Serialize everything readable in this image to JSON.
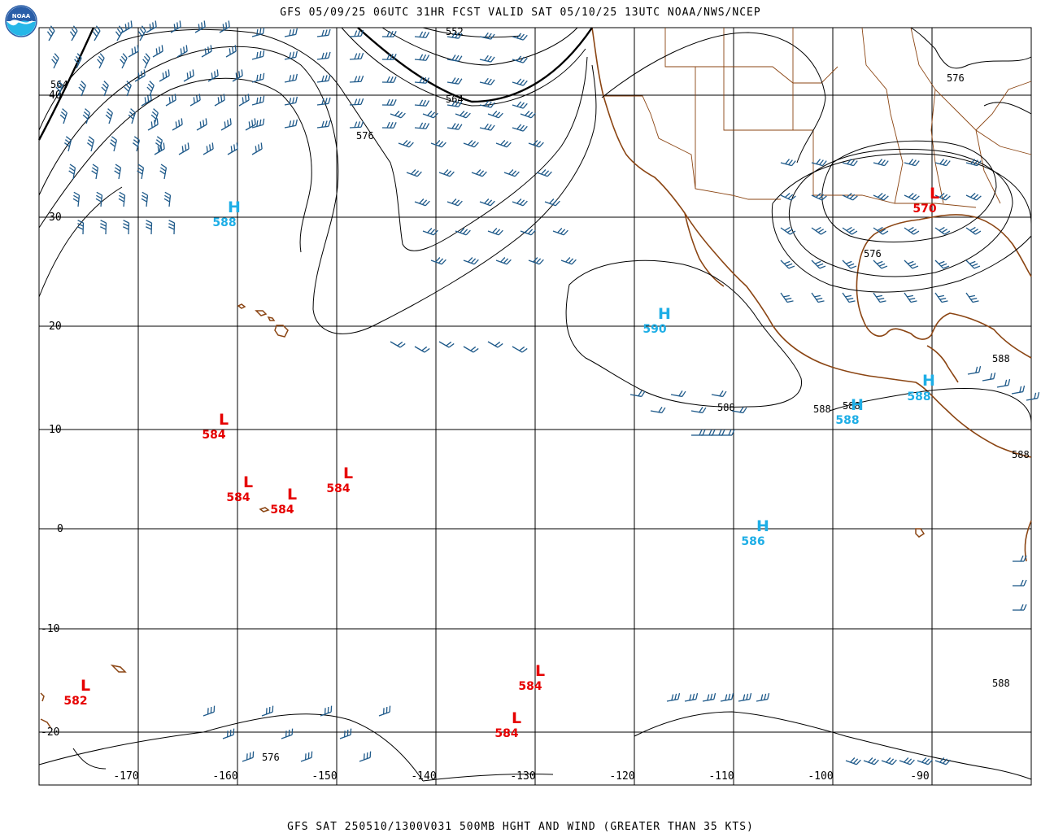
{
  "header": {
    "title": "GFS 05/09/25 06UTC 31HR FCST VALID SAT 05/10/25 13UTC NOAA/NWS/NCEP"
  },
  "footer": {
    "caption": "GFS SAT 250510/1300V031 500MB HGHT AND WIND (GREATER THAN 35 KTS)"
  },
  "logo": {
    "text": "NOAA",
    "icon": "noaa-logo-icon"
  },
  "colors": {
    "high": "#1eaee6",
    "low": "#e60000",
    "wind": "#1f5a8a",
    "coast": "#8b4513",
    "grid": "#000000"
  },
  "map": {
    "lat_labels": [
      "40",
      "30",
      "20",
      "10",
      "0",
      "-10",
      "-20"
    ],
    "lon_labels": [
      "-170",
      "-160",
      "-150",
      "-140",
      "-130",
      "-120",
      "-110",
      "-100",
      "-90"
    ],
    "contour_labels": [
      "552",
      "564",
      "564",
      "576",
      "576",
      "576",
      "576",
      "588",
      "588",
      "588",
      "588",
      "588",
      "588"
    ],
    "highs": [
      {
        "letter": "H",
        "value": "588"
      },
      {
        "letter": "H",
        "value": "590"
      },
      {
        "letter": "H",
        "value": "586"
      },
      {
        "letter": "H",
        "value": "588"
      },
      {
        "letter": "H",
        "value": "588"
      }
    ],
    "lows": [
      {
        "letter": "L",
        "value": "584"
      },
      {
        "letter": "L",
        "value": "584"
      },
      {
        "letter": "L",
        "value": "584"
      },
      {
        "letter": "L",
        "value": "584"
      },
      {
        "letter": "L",
        "value": "582"
      },
      {
        "letter": "L",
        "value": "584"
      },
      {
        "letter": "L",
        "value": "584"
      },
      {
        "letter": "L",
        "value": "570"
      }
    ]
  }
}
